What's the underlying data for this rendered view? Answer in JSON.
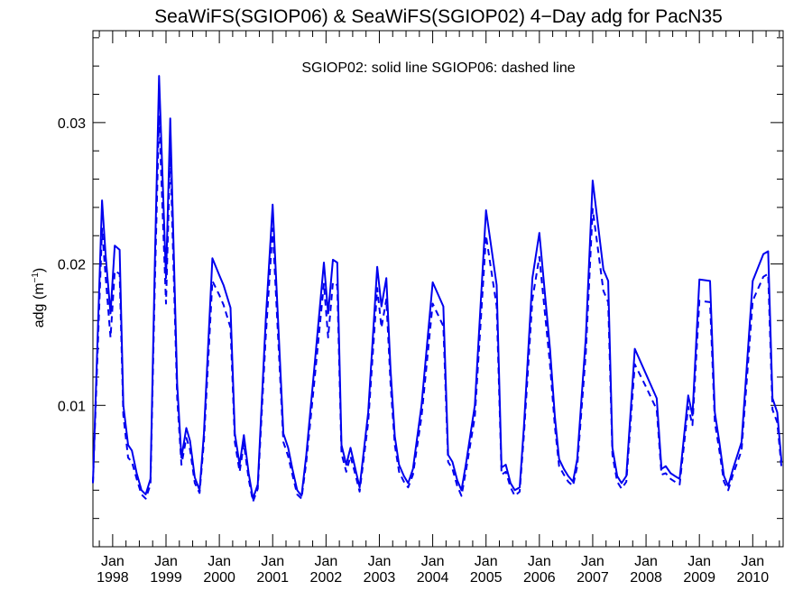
{
  "chart_data": {
    "type": "line",
    "title": "SeaWiFS(SGIOP06) & SeaWiFS(SGIOP02) 4−Day adg for PacN35",
    "annotation": "SGIOP02: solid line   SGIOP06: dashed line",
    "ylabel_main": "adg (m",
    "ylabel_sup": "−1",
    "ylabel_close": ")",
    "ylim": [
      0.0,
      0.0365
    ],
    "yticks": [
      0.01,
      0.02,
      0.03
    ],
    "ytick_labels": [
      "0.01",
      "0.02",
      "0.03"
    ],
    "xlim": [
      1997.63,
      2010.57
    ],
    "xticks": [
      1998,
      1999,
      2000,
      2001,
      2002,
      2003,
      2004,
      2005,
      2006,
      2007,
      2008,
      2009,
      2010
    ],
    "xtick_month": "Jan",
    "xtick_years": [
      "1998",
      "1999",
      "2000",
      "2001",
      "2002",
      "2003",
      "2004",
      "2005",
      "2006",
      "2007",
      "2008",
      "2009",
      "2010"
    ],
    "grid": false,
    "line_color": "#0000ee",
    "x": [
      1997.63,
      1997.8,
      1997.87,
      1997.96,
      1998.04,
      1998.13,
      1998.2,
      1998.29,
      1998.36,
      1998.45,
      1998.54,
      1998.62,
      1998.71,
      1998.79,
      1998.87,
      1999.0,
      1999.08,
      1999.21,
      1999.29,
      1999.38,
      1999.45,
      1999.54,
      1999.63,
      1999.71,
      1999.87,
      2000.0,
      2000.08,
      2000.21,
      2000.29,
      2000.38,
      2000.46,
      2000.55,
      2000.63,
      2000.72,
      2000.87,
      2001.0,
      2001.2,
      2001.29,
      2001.37,
      2001.46,
      2001.54,
      2001.63,
      2001.79,
      2001.96,
      2002.04,
      2002.13,
      2002.21,
      2002.29,
      2002.38,
      2002.46,
      2002.55,
      2002.63,
      2002.79,
      2002.96,
      2003.04,
      2003.13,
      2003.21,
      2003.29,
      2003.37,
      2003.46,
      2003.54,
      2003.63,
      2003.79,
      2004.0,
      2004.2,
      2004.29,
      2004.37,
      2004.46,
      2004.54,
      2004.63,
      2004.79,
      2005.0,
      2005.2,
      2005.29,
      2005.37,
      2005.46,
      2005.54,
      2005.63,
      2005.71,
      2005.87,
      2006.0,
      2006.2,
      2006.29,
      2006.37,
      2006.46,
      2006.54,
      2006.63,
      2006.71,
      2006.87,
      2007.0,
      2007.2,
      2007.29,
      2007.37,
      2007.46,
      2007.54,
      2007.63,
      2007.79,
      2008.0,
      2008.2,
      2008.29,
      2008.37,
      2008.46,
      2008.54,
      2008.63,
      2008.79,
      2008.87,
      2009.0,
      2009.2,
      2009.29,
      2009.37,
      2009.46,
      2009.54,
      2009.63,
      2009.79,
      2010.0,
      2010.2,
      2010.29,
      2010.37,
      2010.46,
      2010.54
    ],
    "series": [
      {
        "name": "SGIOP02",
        "style": "solid",
        "values": [
          0.0045,
          0.0245,
          0.0205,
          0.0165,
          0.0213,
          0.021,
          0.01,
          0.0072,
          0.0068,
          0.0052,
          0.004,
          0.0037,
          0.0048,
          0.02,
          0.0333,
          0.019,
          0.0303,
          0.0115,
          0.0063,
          0.0084,
          0.0075,
          0.0049,
          0.004,
          0.008,
          0.0204,
          0.0192,
          0.0185,
          0.0169,
          0.008,
          0.0058,
          0.0079,
          0.0052,
          0.0034,
          0.0044,
          0.016,
          0.0242,
          0.008,
          0.007,
          0.0055,
          0.004,
          0.0036,
          0.0065,
          0.013,
          0.0201,
          0.0165,
          0.0203,
          0.0201,
          0.0072,
          0.0058,
          0.007,
          0.0055,
          0.0042,
          0.0095,
          0.0198,
          0.017,
          0.019,
          0.0125,
          0.0078,
          0.0058,
          0.005,
          0.0045,
          0.0055,
          0.01,
          0.0187,
          0.017,
          0.0065,
          0.006,
          0.0047,
          0.004,
          0.006,
          0.01,
          0.0238,
          0.0185,
          0.0056,
          0.0058,
          0.0045,
          0.004,
          0.0042,
          0.0085,
          0.019,
          0.0222,
          0.014,
          0.0092,
          0.0062,
          0.0055,
          0.005,
          0.0046,
          0.0062,
          0.0148,
          0.0259,
          0.0196,
          0.0188,
          0.007,
          0.005,
          0.0045,
          0.005,
          0.014,
          0.0122,
          0.0105,
          0.0055,
          0.0057,
          0.0052,
          0.005,
          0.0048,
          0.0107,
          0.0093,
          0.0189,
          0.0188,
          0.0095,
          0.0075,
          0.005,
          0.0043,
          0.0055,
          0.0074,
          0.0188,
          0.0207,
          0.0209,
          0.0105,
          0.0095,
          0.006
        ]
      },
      {
        "name": "SGIOP06",
        "style": "dashed",
        "values": [
          0.0045,
          0.0225,
          0.019,
          0.0148,
          0.0195,
          0.0193,
          0.0093,
          0.0063,
          0.006,
          0.0048,
          0.0037,
          0.0034,
          0.0044,
          0.0185,
          0.0305,
          0.0172,
          0.028,
          0.0105,
          0.0058,
          0.0077,
          0.0069,
          0.0045,
          0.0038,
          0.0074,
          0.0188,
          0.0178,
          0.0171,
          0.0155,
          0.0074,
          0.0053,
          0.0073,
          0.0048,
          0.0032,
          0.0041,
          0.0148,
          0.0225,
          0.0074,
          0.0064,
          0.0051,
          0.0037,
          0.0034,
          0.006,
          0.012,
          0.0186,
          0.0148,
          0.0187,
          0.0185,
          0.0066,
          0.0053,
          0.0064,
          0.0051,
          0.0039,
          0.0088,
          0.0183,
          0.0155,
          0.0175,
          0.0115,
          0.0072,
          0.0053,
          0.0046,
          0.0042,
          0.0051,
          0.0092,
          0.0172,
          0.0156,
          0.006,
          0.0055,
          0.0043,
          0.0036,
          0.0055,
          0.0092,
          0.022,
          0.017,
          0.0051,
          0.0053,
          0.0042,
          0.0036,
          0.0039,
          0.0079,
          0.0175,
          0.0205,
          0.0129,
          0.0085,
          0.0057,
          0.0051,
          0.0046,
          0.0043,
          0.0057,
          0.0137,
          0.0239,
          0.0181,
          0.0173,
          0.0065,
          0.0046,
          0.0041,
          0.0046,
          0.0129,
          0.0113,
          0.0097,
          0.0051,
          0.0052,
          0.0048,
          0.0046,
          0.0044,
          0.0099,
          0.0086,
          0.0174,
          0.0173,
          0.0088,
          0.0069,
          0.0046,
          0.004,
          0.0051,
          0.0068,
          0.0174,
          0.0191,
          0.0193,
          0.0097,
          0.0088,
          0.0056
        ]
      }
    ]
  }
}
